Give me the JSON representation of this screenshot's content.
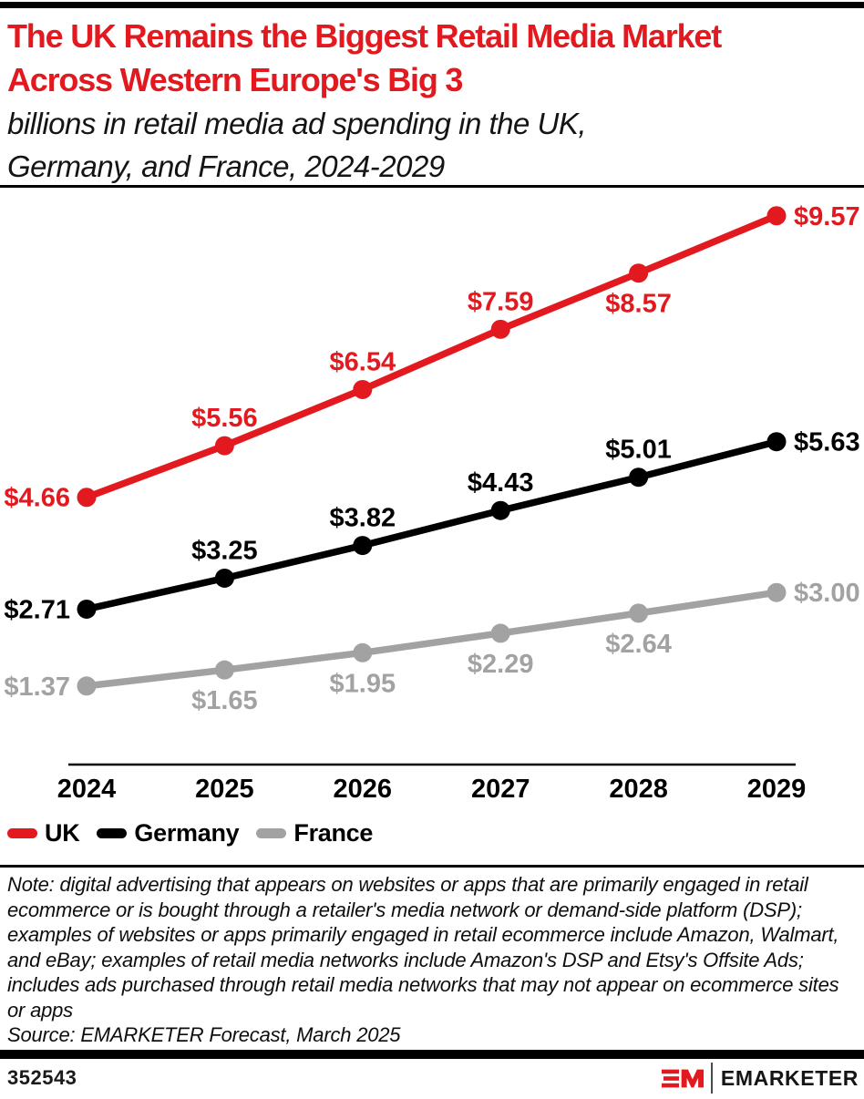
{
  "header": {
    "title_lines": [
      "The UK Remains the Biggest Retail Media Market",
      "Across Western Europe's Big 3"
    ],
    "subtitle_lines": [
      "billions in retail media ad spending in the UK,",
      "Germany, and France, 2024-2029"
    ],
    "title_color": "#e2191f"
  },
  "chart_data": {
    "type": "line",
    "title": "The UK Remains the Biggest Retail Media Market Across Western Europe's Big 3",
    "subtitle": "billions in retail media ad spending in the UK, Germany, and France, 2024-2029",
    "categories": [
      "2024",
      "2025",
      "2026",
      "2027",
      "2028",
      "2029"
    ],
    "series": [
      {
        "name": "UK",
        "color": "#e2191f",
        "values": [
          4.66,
          5.56,
          6.54,
          7.59,
          8.57,
          9.57
        ],
        "label_placement": [
          "left",
          "above",
          "above",
          "above",
          "below",
          "right"
        ]
      },
      {
        "name": "Germany",
        "color": "#000000",
        "values": [
          2.71,
          3.25,
          3.82,
          4.43,
          5.01,
          5.63
        ],
        "label_placement": [
          "left",
          "above",
          "above",
          "above",
          "above",
          "right"
        ]
      },
      {
        "name": "France",
        "color": "#a2a2a2",
        "values": [
          1.37,
          1.65,
          1.95,
          2.29,
          2.64,
          3.0
        ],
        "label_placement": [
          "left",
          "below",
          "below",
          "below",
          "below",
          "right"
        ]
      }
    ],
    "value_prefix": "$",
    "value_decimals": 2,
    "ylim": [
      0,
      10
    ],
    "grid": false,
    "y_axis_visible": false,
    "legend_position": "bottom"
  },
  "footnote": {
    "note": "Note: digital advertising that appears on websites or apps that are primarily engaged in retail ecommerce or is bought through a retailer's media network or demand-side platform (DSP); examples of websites or apps primarily engaged in retail ecommerce include Amazon, Walmart, and eBay; examples of retail media networks include Amazon's DSP and Etsy's Offsite Ads; includes ads purchased through retail media networks that may not appear on ecommerce sites or apps",
    "source": "Source: EMARKETER Forecast, March 2025"
  },
  "footer": {
    "chart_number": "352543",
    "monogram": "EM",
    "brand_name": "EMARKETER",
    "brand_color": "#e2191f"
  }
}
